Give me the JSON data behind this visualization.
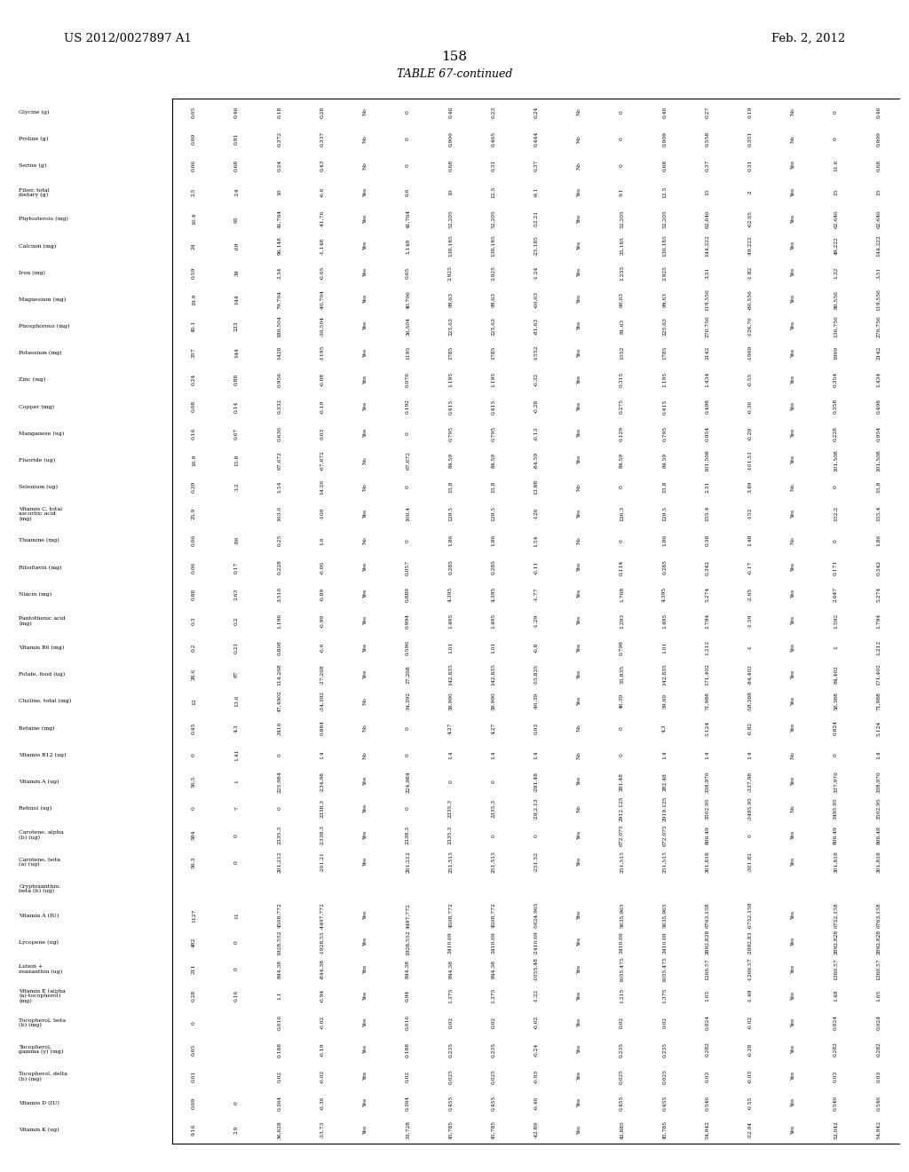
{
  "page_header_left": "US 2012/0027897 A1",
  "page_header_right": "Feb. 2, 2012",
  "page_number": "158",
  "table_title": "TABLE 67-continued",
  "row_labels": [
    "Glycine (g)",
    "Proline (g)",
    "Serine (g)",
    "Fiber, total\ndietary (g)",
    "Phytosterols (mg)",
    "Calcium (mg)",
    "Iron (mg)",
    "Magnesium (mg)",
    "Phosphorous (mg)",
    "Potassium (mg)",
    "Zinc (mg)",
    "Copper (mg)",
    "Manganese (ug)",
    "Fluoride (ug)",
    "Selenium (ug)",
    "Vitamin C, total\nascorbic acid\n(mg)",
    "Thiamine (mg)",
    "Riboflavin (mg)",
    "Niacin (mg)",
    "Pantothenic acid\n(mg)",
    "Vitamin B6 (mg)",
    "Folate, food (ug)",
    "Choline, total (mg)",
    "Betaine (mg)",
    "Vitamin B12 (ug)",
    "Vitamin A (ug)",
    "Retinol (ug)",
    "Carotene, alpha\n(b) (ug)",
    "Carotene, beta\n(a) (ug)",
    "Cryptoxanthin,\nbeta (b) (ug)",
    "Vitamin A (IU)",
    "Lycopene (ug)",
    "Lutein +\nzeaxanthin (ug)",
    "Vitamin E (alpha\n(a)-tocopherol)\n(mg)",
    "Tocopherol, beta\n(b) (mg)",
    "Tocopherol,\ngamma (y) (mg)",
    "Tocopherol, delta\n(b) (mg)",
    "Vitamin D (IU)",
    "Vitamin K (ug)"
  ],
  "columns": [
    [
      "0.05",
      "0.09",
      "0.06",
      "2.5",
      "10.4",
      "24",
      "0.59",
      "19.9",
      "45.1",
      "357",
      "0.24",
      "0.08",
      "0.16",
      "16.9",
      "0.39",
      "25.9",
      "0.06",
      "0.06",
      "0.88",
      "0.3",
      "0.2",
      "28.6",
      "12",
      "0.45",
      "0",
      "56.5",
      "0",
      "584",
      "50.3",
      "",
      "1127",
      "482",
      "211",
      "0.28",
      "0",
      "0.05",
      "0.01",
      "0.09",
      "9.16"
    ],
    [
      "0.46",
      "0.91",
      "0.68",
      "3.4",
      "95",
      ".69",
      "39",
      "144",
      "233",
      "144",
      "0.88",
      "0.14",
      "0.67",
      "15.8",
      "3.2",
      "",
      ".86",
      "0.17",
      "2.63",
      "0.2",
      "0.21",
      "87",
      "13.6",
      "4.3",
      "1.41",
      "1",
      "7",
      "0",
      "0",
      "",
      "11",
      "0",
      "0",
      "0.16",
      "",
      "",
      "",
      "0",
      "2.9"
    ],
    [
      "0.18",
      "0.372",
      "0.24",
      "10",
      "41,764",
      "96,148",
      "2.34",
      "79,704",
      "180,504",
      "1428",
      "0.956",
      "0.332",
      "0.636",
      "67,672",
      "1.54",
      "103.6",
      "0.25",
      "0.228",
      "3.516",
      "1.196",
      "0.808",
      "114,268",
      "47,4902",
      "3416",
      "0",
      "225,984",
      "0",
      "2335.3",
      "201,212",
      "",
      "4508,772",
      "1928,552",
      "844.38",
      "1.1",
      "0.016",
      "0.188",
      "0.02",
      "0.364",
      "36,628"
    ],
    [
      "0.28",
      "0.337",
      "0.43",
      "-6.6",
      "-41,76",
      "-1,148",
      "-0.65",
      "-40,704",
      "-36,504",
      "-1195",
      "-0.08",
      "-0.19",
      "0.03",
      "-67,672",
      "14.26",
      "-100",
      "1.6",
      "-0.06",
      "-0.89",
      "-0.99",
      "-0.6",
      "-27,268",
      "-34,392",
      "0.884",
      "1.4",
      "-234,98",
      "2338.3",
      "-2338.3",
      "-201,21",
      "",
      "-4497,772",
      "-1928,55",
      "-844.38",
      "-0.94",
      "-0.02",
      "-0.19",
      "-0.02",
      "-0.36",
      "-33,73"
    ],
    [
      "No",
      "No",
      "No",
      "Yes",
      "Yes",
      "Yes",
      "Yes",
      "Yes",
      "Yes",
      "Yes",
      "Yes",
      "Yes",
      "Yes",
      "No",
      "No",
      "Yes",
      "No",
      "Yes",
      "Yes",
      "Yes",
      "Yes",
      "Yes",
      "No",
      "No",
      "No",
      "Yes",
      "Yes",
      "Yes",
      "Yes",
      "",
      "Yes",
      "Yes",
      "Yes",
      "Yes",
      "Yes",
      "Yes",
      "Yes",
      "Yes",
      "Yes"
    ],
    [
      "0",
      "0",
      "0",
      "6.6",
      "41,764",
      "1,148",
      "0.65",
      "40,706",
      "36,504",
      "1195",
      "0.076",
      "0.192",
      "0",
      "67,672",
      "0",
      "100.4",
      "0",
      "0.057",
      "0.889",
      "0.994",
      "0.596",
      "27,268",
      "34,392",
      "0",
      "0",
      "224,984",
      "0",
      "2338.3",
      "201,212",
      "",
      "4497,772",
      "1928,552",
      "844.38",
      "0.94",
      "0.016",
      "0.188",
      "0.02",
      "0.364",
      "33,728"
    ],
    [
      "0.46",
      "0.909",
      "0.68",
      "10",
      "52,205",
      "130,185",
      "2.925",
      "99,63",
      "225,63",
      "1785",
      "1.195",
      "0.415",
      "0.795",
      "84.59",
      "15.8",
      "129.5",
      "1.86",
      "0.285",
      "4.395",
      "1.495",
      "1.01",
      "142,835",
      "58,990",
      "4.27",
      "1.4",
      "0",
      "2335.3",
      "2335.3",
      "251,515",
      "",
      "4508,772",
      "2410.69",
      "844.38",
      "1.375",
      "0.02",
      "0.235",
      "0.025",
      "0.455",
      "45,785"
    ],
    [
      "0.23",
      "0.465",
      "0.31",
      "12.5",
      "52,205",
      "130,185",
      "2.925",
      "99,63",
      "225,63",
      "1785",
      "1.195",
      "0.415",
      "0.795",
      "84.59",
      "15.8",
      "129.5",
      "1.86",
      "0.285",
      "4.395",
      "1.495",
      "1.01",
      "142,835",
      "58,990",
      "4.27",
      "1.4",
      "0",
      "2335.3",
      "0",
      "251,515",
      "",
      "4508,772",
      "2410.69",
      "844.38",
      "1.375",
      "0.02",
      "0.235",
      "0.025",
      "0.455",
      "45,785"
    ],
    [
      "0.24",
      "0.444",
      "0.37",
      "-9.1",
      "-52.21",
      "-25,185",
      "-1.24",
      "-60,63",
      "-81,63",
      "-1552",
      "-0.32",
      "-0.28",
      "-0.13",
      "-84.59",
      "13.88",
      "-126",
      "1.54",
      "-0.11",
      "-1.77",
      "-1.29",
      "-0.8",
      "-55,835",
      "-46.39",
      "0.03",
      "1.4",
      "-281.48",
      "-29,2.13",
      "0",
      "-251.52",
      "",
      "-5624,965",
      "-2410.69",
      "-1055.48",
      "-1.22",
      "-0.02",
      "-0.24",
      "-0.03",
      "-0.46",
      "-42.89"
    ],
    [
      "No",
      "No",
      "No",
      "Yes",
      "Yes",
      "Yes",
      "Yes",
      "Yes",
      "Yes",
      "Yes",
      "Yes",
      "Yes",
      "Yes",
      "Yes",
      "No",
      "Yes",
      "No",
      "Yes",
      "Yes",
      "Yes",
      "Yes",
      "Yes",
      "Yes",
      "No",
      "No",
      "Yes",
      "No",
      "Yes",
      "Yes",
      "",
      "Yes",
      "Yes",
      "Yes",
      "Yes",
      "Yes",
      "Yes",
      "Yes",
      "Yes",
      "Yes"
    ],
    [
      "0",
      "0",
      "0",
      "9.1",
      "52,205",
      "25,185",
      "1.235",
      "60.63",
      "81,63",
      "1552",
      "0.315",
      "0.275",
      "0.129",
      "84.59",
      "0",
      "126.3",
      "0",
      "0.114",
      "1.768",
      "1.293",
      "0.798",
      "55,835",
      "46.39",
      "0",
      "0",
      "281.48",
      "2912.125",
      "672.075",
      "251,515",
      "",
      "5635,965",
      "2410.69",
      "1055.475",
      "1.215",
      "0.02",
      "0.235",
      "0.025",
      "0.455",
      "42,885"
    ],
    [
      "0.46",
      "0.909",
      "0.68",
      "12.5",
      "52,205",
      "130,185",
      "2.925",
      "99,63",
      "225,63",
      "1785",
      "1.195",
      "0.415",
      "0.795",
      "84.59",
      "15.8",
      "129.5",
      "1.86",
      "0.285",
      "4.395",
      "1.495",
      "1.01",
      "142,835",
      "59.69",
      "4.3",
      "1.4",
      "282.48",
      "2919.125",
      "672.075",
      "251,515",
      "",
      "5635,965",
      "2410.69",
      "1055.475",
      "1.375",
      "0.02",
      "0.235",
      "0.025",
      "0.455",
      "45,785"
    ],
    [
      "0.27",
      "0.558",
      "0.37",
      "15",
      "62,646",
      "144,222",
      "3.51",
      "119,556",
      "270,756",
      "2142",
      "1.434",
      "0.498",
      "0.954",
      "101,508",
      "2.31",
      "155.4",
      "0.38",
      "0.342",
      "5.274",
      "1.794",
      "1.212",
      "171,402",
      "71,988",
      "5.124",
      "1.4",
      "338,976",
      "3502.95",
      "806.49",
      "301,818",
      "",
      "6763,158",
      "2892,828",
      "1266.57",
      "1.65",
      "0.024",
      "0.282",
      "0.03",
      "0.546",
      "54,942"
    ],
    [
      "0.19",
      "0.351",
      "0.31",
      "-2",
      "-62.65",
      "-49,222",
      "-1.82",
      "-80,556",
      "-126,76",
      "-1969",
      "-0.55",
      "-0.36",
      "-0.29",
      "-101.51",
      "3.49",
      "-152",
      "1.48",
      "-0.17",
      "-2.65",
      "-1.59",
      "-1",
      "-84,402",
      "-58,388",
      "-0.82",
      "1.4",
      "-337,98",
      "-3495.95",
      "0",
      "-301.82",
      "",
      "-6752,158",
      "-2892,83",
      "-1266.57",
      "-1.49",
      "-0.02",
      "-0.28",
      "-0.03",
      "-0.55",
      "-52.04"
    ],
    [
      "No",
      "No",
      "Yes",
      "Yes",
      "Yes",
      "Yes",
      "Yes",
      "Yes",
      "Yes",
      "Yes",
      "Yes",
      "Yes",
      "Yes",
      "Yes",
      "No",
      "Yes",
      "No",
      "Yes",
      "Yes",
      "Yes",
      "Yes",
      "Yes",
      "Yes",
      "Yes",
      "No",
      "Yes",
      "No",
      "Yes",
      "Yes",
      "",
      "Yes",
      "Yes",
      "Yes",
      "Yes",
      "Yes",
      "Yes",
      "Yes",
      "Yes",
      "Yes"
    ],
    [
      "0",
      "0",
      "11.6",
      "15",
      "62,646",
      "49,222",
      "1.32",
      "80,556",
      "136,756",
      "1909",
      "0.354",
      "0.358",
      "0.228",
      "101,508",
      "0",
      "152.2",
      "0",
      "0.171",
      "2.647",
      "1.592",
      "1",
      "84,402",
      "58,388",
      "0.824",
      "0",
      "337,976",
      "3495.95",
      "806.49",
      "301,818",
      "",
      "6752,158",
      "2892,828",
      "1266.57",
      "1.49",
      "0.024",
      "0.282",
      "0.03",
      "0.546",
      "52,042"
    ],
    [
      "0.46",
      "0.909",
      "0.68",
      "15",
      "62,646",
      "144,222",
      "3.51",
      "119,556",
      "270,756",
      "2142",
      "1.434",
      "0.498",
      "0.954",
      "101,508",
      "15.8",
      "155.4",
      "1.86",
      "0.342",
      "5.274",
      "1.794",
      "1.212",
      "171,402",
      "71,988",
      "5.124",
      "1.4",
      "338,976",
      "3502.95",
      "806.49",
      "301,818",
      "",
      "6763,158",
      "2892,828",
      "1266.57",
      "1.65",
      "0.024",
      "0.282",
      "0.03",
      "0.546",
      "54,942"
    ]
  ]
}
